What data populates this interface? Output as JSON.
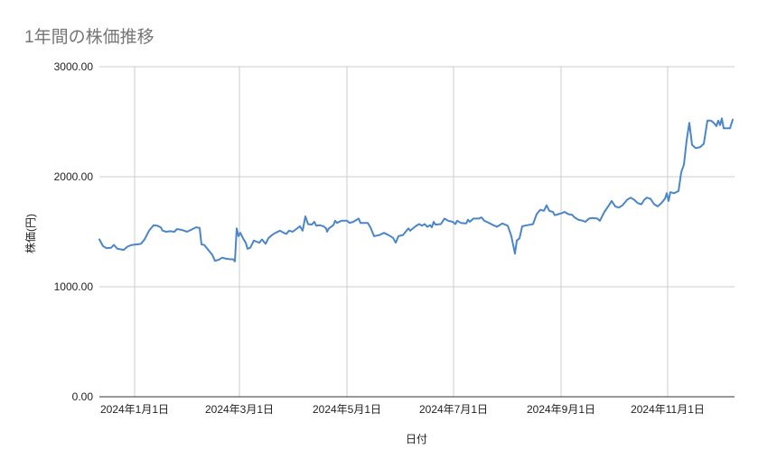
{
  "chart_data": {
    "type": "line",
    "title": "1年間の株価推移",
    "xlabel": "日付",
    "ylabel": "株価(円)",
    "ylim": [
      0,
      3000
    ],
    "yticks": [
      "0.00",
      "1000.00",
      "2000.00",
      "3000.00"
    ],
    "xticks": [
      "2024年1月1日",
      "2024年3月1日",
      "2024年5月1日",
      "2024年7月1日",
      "2024年9月1日",
      "2024年11月1日"
    ],
    "grid": true,
    "legend": "none",
    "line_color": "#4a86c8",
    "series": [
      {
        "name": "株価",
        "points": [
          [
            110,
            1430
          ],
          [
            114,
            1370
          ],
          [
            118,
            1350
          ],
          [
            123,
            1355
          ],
          [
            126,
            1380
          ],
          [
            130,
            1345
          ],
          [
            137,
            1335
          ],
          [
            141,
            1365
          ],
          [
            146,
            1380
          ],
          [
            152,
            1385
          ],
          [
            156,
            1390
          ],
          [
            160,
            1430
          ],
          [
            165,
            1510
          ],
          [
            170,
            1560
          ],
          [
            174,
            1555
          ],
          [
            178,
            1540
          ],
          [
            180,
            1510
          ],
          [
            184,
            1500
          ],
          [
            188,
            1505
          ],
          [
            193,
            1500
          ],
          [
            196,
            1525
          ],
          [
            202,
            1515
          ],
          [
            207,
            1500
          ],
          [
            212,
            1520
          ],
          [
            217,
            1540
          ],
          [
            221,
            1535
          ],
          [
            223,
            1385
          ],
          [
            226,
            1380
          ],
          [
            231,
            1330
          ],
          [
            235,
            1290
          ],
          [
            238,
            1235
          ],
          [
            242,
            1245
          ],
          [
            246,
            1265
          ],
          [
            250,
            1255
          ],
          [
            255,
            1250
          ],
          [
            258,
            1250
          ],
          [
            260,
            1230
          ],
          [
            262,
            1530
          ],
          [
            264,
            1460
          ],
          [
            266,
            1490
          ],
          [
            269,
            1440
          ],
          [
            272,
            1400
          ],
          [
            274,
            1345
          ],
          [
            277,
            1355
          ],
          [
            281,
            1420
          ],
          [
            284,
            1410
          ],
          [
            287,
            1400
          ],
          [
            290,
            1430
          ],
          [
            292,
            1410
          ],
          [
            294,
            1390
          ],
          [
            297,
            1440
          ],
          [
            301,
            1470
          ],
          [
            305,
            1490
          ],
          [
            310,
            1510
          ],
          [
            314,
            1490
          ],
          [
            317,
            1480
          ],
          [
            320,
            1510
          ],
          [
            324,
            1500
          ],
          [
            328,
            1525
          ],
          [
            332,
            1550
          ],
          [
            335,
            1510
          ],
          [
            338,
            1640
          ],
          [
            341,
            1570
          ],
          [
            345,
            1565
          ],
          [
            348,
            1590
          ],
          [
            350,
            1555
          ],
          [
            354,
            1560
          ],
          [
            358,
            1550
          ],
          [
            361,
            1530
          ],
          [
            362,
            1500
          ],
          [
            364,
            1530
          ],
          [
            369,
            1560
          ],
          [
            371,
            1600
          ],
          [
            373,
            1580
          ],
          [
            378,
            1600
          ],
          [
            384,
            1600
          ],
          [
            387,
            1580
          ],
          [
            391,
            1590
          ],
          [
            397,
            1620
          ],
          [
            399,
            1580
          ],
          [
            407,
            1580
          ],
          [
            410,
            1540
          ],
          [
            414,
            1460
          ],
          [
            420,
            1470
          ],
          [
            425,
            1490
          ],
          [
            430,
            1470
          ],
          [
            435,
            1445
          ],
          [
            438,
            1400
          ],
          [
            441,
            1460
          ],
          [
            446,
            1470
          ],
          [
            449,
            1500
          ],
          [
            452,
            1530
          ],
          [
            454,
            1510
          ],
          [
            460,
            1550
          ],
          [
            464,
            1570
          ],
          [
            467,
            1555
          ],
          [
            470,
            1570
          ],
          [
            473,
            1545
          ],
          [
            476,
            1560
          ],
          [
            478,
            1540
          ],
          [
            480,
            1590
          ],
          [
            482,
            1565
          ],
          [
            488,
            1570
          ],
          [
            492,
            1620
          ],
          [
            496,
            1600
          ],
          [
            501,
            1590
          ],
          [
            504,
            1570
          ],
          [
            506,
            1600
          ],
          [
            510,
            1580
          ],
          [
            516,
            1575
          ],
          [
            518,
            1610
          ],
          [
            520,
            1590
          ],
          [
            524,
            1620
          ],
          [
            530,
            1620
          ],
          [
            533,
            1630
          ],
          [
            536,
            1600
          ],
          [
            540,
            1585
          ],
          [
            546,
            1560
          ],
          [
            550,
            1545
          ],
          [
            556,
            1575
          ],
          [
            562,
            1555
          ],
          [
            566,
            1460
          ],
          [
            570,
            1300
          ],
          [
            572,
            1420
          ],
          [
            575,
            1440
          ],
          [
            578,
            1550
          ],
          [
            584,
            1560
          ],
          [
            590,
            1570
          ],
          [
            594,
            1660
          ],
          [
            598,
            1700
          ],
          [
            602,
            1690
          ],
          [
            605,
            1740
          ],
          [
            608,
            1690
          ],
          [
            612,
            1680
          ],
          [
            614,
            1650
          ],
          [
            618,
            1660
          ],
          [
            622,
            1670
          ],
          [
            625,
            1680
          ],
          [
            629,
            1660
          ],
          [
            633,
            1655
          ],
          [
            636,
            1630
          ],
          [
            640,
            1610
          ],
          [
            645,
            1600
          ],
          [
            648,
            1590
          ],
          [
            652,
            1620
          ],
          [
            656,
            1625
          ],
          [
            661,
            1620
          ],
          [
            664,
            1600
          ],
          [
            669,
            1680
          ],
          [
            674,
            1740
          ],
          [
            677,
            1780
          ],
          [
            681,
            1730
          ],
          [
            685,
            1720
          ],
          [
            689,
            1740
          ],
          [
            694,
            1790
          ],
          [
            698,
            1810
          ],
          [
            702,
            1790
          ],
          [
            706,
            1760
          ],
          [
            710,
            1750
          ],
          [
            713,
            1790
          ],
          [
            716,
            1810
          ],
          [
            720,
            1800
          ],
          [
            724,
            1750
          ],
          [
            728,
            1730
          ],
          [
            732,
            1760
          ],
          [
            736,
            1800
          ],
          [
            738,
            1850
          ],
          [
            740,
            1780
          ],
          [
            742,
            1860
          ],
          [
            746,
            1850
          ],
          [
            751,
            1870
          ],
          [
            754,
            2040
          ],
          [
            757,
            2110
          ],
          [
            760,
            2330
          ],
          [
            763,
            2490
          ],
          [
            766,
            2290
          ],
          [
            770,
            2260
          ],
          [
            775,
            2270
          ],
          [
            779,
            2300
          ],
          [
            783,
            2510
          ],
          [
            787,
            2510
          ],
          [
            790,
            2490
          ],
          [
            793,
            2460
          ],
          [
            795,
            2510
          ],
          [
            797,
            2470
          ],
          [
            799,
            2530
          ],
          [
            801,
            2440
          ],
          [
            804,
            2440
          ],
          [
            808,
            2440
          ],
          [
            811,
            2520
          ],
          [
            815,
            2550
          ],
          [
            818,
            2510
          ],
          [
            820,
            2480
          ]
        ]
      }
    ]
  },
  "title": "1年間の株価推移"
}
